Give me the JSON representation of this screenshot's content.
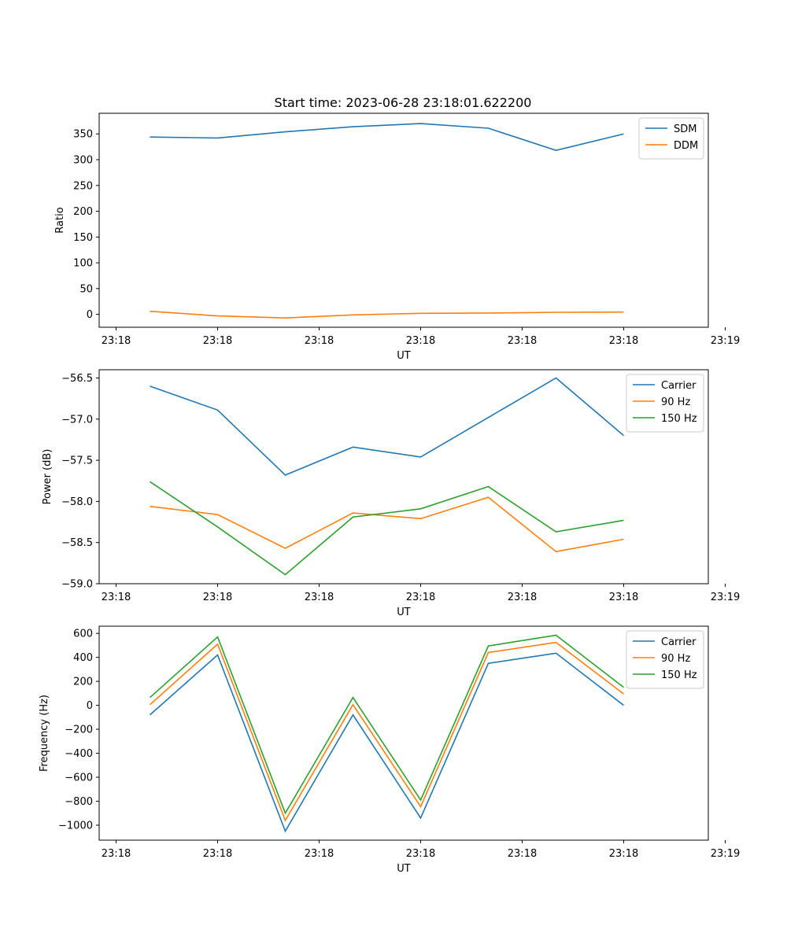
{
  "title": "Start time: 2023-06-28 23:18:01.622200",
  "colors": {
    "blue": "#1f77b4",
    "orange": "#ff7f0e",
    "green": "#2ca02c"
  },
  "chart_data": [
    {
      "type": "line",
      "title": "Start time: 2023-06-28 23:18:01.622200",
      "xlabel": "UT",
      "ylabel": "Ratio",
      "x": [
        1,
        2,
        3,
        4,
        5,
        6,
        7,
        8
      ],
      "xlim": [
        0.25,
        9.25
      ],
      "xticks": [
        0.5,
        2,
        3.5,
        5,
        6.5,
        8,
        9.5
      ],
      "xtick_labels": [
        "23:18",
        "23:18",
        "23:18",
        "23:18",
        "23:18",
        "23:18",
        "23:19"
      ],
      "ylim": [
        -25,
        390
      ],
      "yticks": [
        0,
        50,
        100,
        150,
        200,
        250,
        300,
        350
      ],
      "ytick_labels": [
        "0",
        "50",
        "100",
        "150",
        "200",
        "250",
        "300",
        "350"
      ],
      "legend": "top-right",
      "series": [
        {
          "name": "SDM",
          "color": "#1f77b4",
          "values": [
            344,
            342,
            354,
            364,
            370,
            361,
            318,
            350
          ]
        },
        {
          "name": "DDM",
          "color": "#ff7f0e",
          "values": [
            6,
            -3,
            -7,
            -1,
            2,
            2.5,
            4,
            4.5
          ]
        }
      ]
    },
    {
      "type": "line",
      "xlabel": "UT",
      "ylabel": "Power (dB)",
      "x": [
        1,
        2,
        3,
        4,
        5,
        6,
        7,
        8
      ],
      "xlim": [
        0.25,
        9.25
      ],
      "xticks": [
        0.5,
        2,
        3.5,
        5,
        6.5,
        8,
        9.5
      ],
      "xtick_labels": [
        "23:18",
        "23:18",
        "23:18",
        "23:18",
        "23:18",
        "23:18",
        "23:19"
      ],
      "ylim": [
        -59.0,
        -56.4
      ],
      "yticks": [
        -59.0,
        -58.5,
        -58.0,
        -57.5,
        -57.0,
        -56.5
      ],
      "ytick_labels": [
        "−59.0",
        "−58.5",
        "−58.0",
        "−57.5",
        "−57.0",
        "−56.5"
      ],
      "legend": "top-right",
      "series": [
        {
          "name": "Carrier",
          "color": "#1f77b4",
          "values": [
            -56.6,
            -56.89,
            -57.68,
            -57.34,
            -57.46,
            -56.98,
            -56.5,
            -57.2
          ]
        },
        {
          "name": "90 Hz",
          "color": "#ff7f0e",
          "values": [
            -58.06,
            -58.16,
            -58.57,
            -58.14,
            -58.21,
            -57.95,
            -58.61,
            -58.46
          ]
        },
        {
          "name": "150 Hz",
          "color": "#2ca02c",
          "values": [
            -57.76,
            -58.31,
            -58.89,
            -58.19,
            -58.09,
            -57.82,
            -58.37,
            -58.23
          ]
        }
      ]
    },
    {
      "type": "line",
      "xlabel": "UT",
      "ylabel": "Frequency (Hz)",
      "x": [
        1,
        2,
        3,
        4,
        5,
        6,
        7,
        8
      ],
      "xlim": [
        0.25,
        9.25
      ],
      "xticks": [
        0.5,
        2,
        3.5,
        5,
        6.5,
        8,
        9.5
      ],
      "xtick_labels": [
        "23:18",
        "23:18",
        "23:18",
        "23:18",
        "23:18",
        "23:18",
        "23:19"
      ],
      "ylim": [
        -1125,
        660
      ],
      "yticks": [
        -1000,
        -800,
        -600,
        -400,
        -200,
        0,
        200,
        400,
        600
      ],
      "ytick_labels": [
        "−1000",
        "−800",
        "−600",
        "−400",
        "−200",
        "0",
        "200",
        "400",
        "600"
      ],
      "legend": "top-right",
      "series": [
        {
          "name": "Carrier",
          "color": "#1f77b4",
          "values": [
            -80,
            420,
            -1050,
            -80,
            -940,
            350,
            435,
            0
          ]
        },
        {
          "name": "90 Hz",
          "color": "#ff7f0e",
          "values": [
            5,
            510,
            -960,
            5,
            -845,
            440,
            525,
            95
          ]
        },
        {
          "name": "150 Hz",
          "color": "#2ca02c",
          "values": [
            65,
            570,
            -900,
            65,
            -790,
            495,
            585,
            150
          ]
        }
      ]
    }
  ]
}
